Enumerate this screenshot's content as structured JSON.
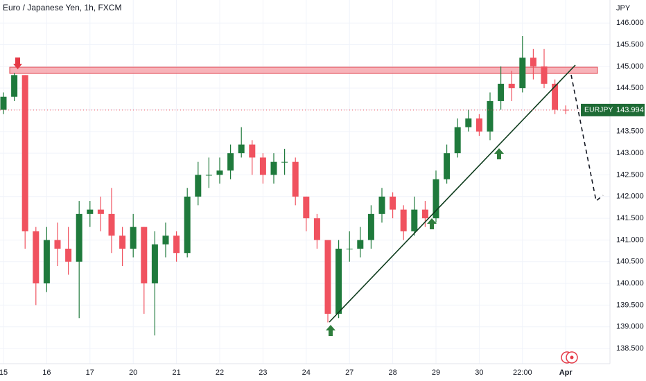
{
  "chart_data": {
    "type": "candlestick",
    "title": "Euro / Japanese Yen, 1h, FXCM",
    "currency": "JPY",
    "categories": [
      "15",
      null,
      null,
      null,
      "16",
      null,
      null,
      null,
      "17",
      null,
      null,
      null,
      "20",
      null,
      null,
      null,
      "21",
      null,
      null,
      null,
      "22",
      null,
      null,
      null,
      "23",
      null,
      null,
      null,
      "24",
      null,
      null,
      null,
      "27",
      null,
      null,
      null,
      "28",
      null,
      null,
      null,
      "29",
      null,
      null,
      null,
      "30",
      null,
      null,
      null,
      "22:00",
      null,
      null,
      null,
      "Apr"
    ],
    "open": [
      144.0,
      144.3,
      144.8,
      141.2,
      140.0,
      141.0,
      140.8,
      140.5,
      141.6,
      141.7,
      141.6,
      141.1,
      140.8,
      141.3,
      140.0,
      140.9,
      141.1,
      140.7,
      142.0,
      142.5,
      142.5,
      142.6,
      143.0,
      143.2,
      142.9,
      142.5,
      142.8,
      142.8,
      142.0,
      141.5,
      141.0,
      139.3,
      140.8,
      140.8,
      141.0,
      141.6,
      142.0,
      141.7,
      141.2,
      141.7,
      141.5,
      142.4,
      143.0,
      143.6,
      143.8,
      143.5,
      144.2,
      144.6,
      144.5,
      145.2,
      145.0,
      144.6,
      144.0
    ],
    "high": [
      144.4,
      144.85,
      144.8,
      141.3,
      141.3,
      141.4,
      141.3,
      141.9,
      141.9,
      142.0,
      142.2,
      141.3,
      141.6,
      141.3,
      141.2,
      141.4,
      141.2,
      142.2,
      142.8,
      142.9,
      142.9,
      143.2,
      143.6,
      143.3,
      143.0,
      143.0,
      143.1,
      142.9,
      142.0,
      141.6,
      141.0,
      141.0,
      141.2,
      141.3,
      141.8,
      142.2,
      142.1,
      141.8,
      142.0,
      141.9,
      142.6,
      143.2,
      143.8,
      144.0,
      143.9,
      144.4,
      145.0,
      144.9,
      145.7,
      145.4,
      145.4,
      144.7,
      144.1
    ],
    "low": [
      143.9,
      144.2,
      140.8,
      139.5,
      139.8,
      140.4,
      140.2,
      139.2,
      141.3,
      141.2,
      140.7,
      140.4,
      140.6,
      139.3,
      138.8,
      140.6,
      140.5,
      140.6,
      141.8,
      142.2,
      142.3,
      142.4,
      142.9,
      142.5,
      142.3,
      142.3,
      142.5,
      141.8,
      141.2,
      140.8,
      139.1,
      139.2,
      140.5,
      140.6,
      140.8,
      141.4,
      141.5,
      141.0,
      141.1,
      141.3,
      141.4,
      142.3,
      142.9,
      143.5,
      143.4,
      143.3,
      144.0,
      144.2,
      144.4,
      144.7,
      144.5,
      143.9,
      143.9
    ],
    "close": [
      144.3,
      144.8,
      141.2,
      140.0,
      141.0,
      140.8,
      140.5,
      141.6,
      141.7,
      141.6,
      141.1,
      140.8,
      141.3,
      140.0,
      140.9,
      141.1,
      140.7,
      142.0,
      142.5,
      142.5,
      142.6,
      143.0,
      143.2,
      142.9,
      142.5,
      142.8,
      142.8,
      142.0,
      141.5,
      141.0,
      139.3,
      140.8,
      140.8,
      141.0,
      141.6,
      142.0,
      141.7,
      141.2,
      141.7,
      141.5,
      142.4,
      143.0,
      143.6,
      143.8,
      143.5,
      144.2,
      144.6,
      144.5,
      145.2,
      145.0,
      144.6,
      144.0,
      143.99
    ],
    "up_color": "#1f7a3c",
    "down_color": "#f0525f",
    "ylim": [
      138.15,
      146.53
    ],
    "yticks": [
      {
        "value": 138.5,
        "label": "138.500"
      },
      {
        "value": 139,
        "label": "139.000"
      },
      {
        "value": 139.5,
        "label": "139.500"
      },
      {
        "value": 140,
        "label": "140.000"
      },
      {
        "value": 140.5,
        "label": "140.500"
      },
      {
        "value": 141,
        "label": "141.000"
      },
      {
        "value": 141.5,
        "label": "141.500"
      },
      {
        "value": 142,
        "label": "142.000"
      },
      {
        "value": 142.5,
        "label": "142.500"
      },
      {
        "value": 143,
        "label": "143.000"
      },
      {
        "value": 143.5,
        "label": "143.500"
      },
      {
        "value": 144,
        "label": "144.000"
      },
      {
        "value": 144.5,
        "label": "144.500"
      },
      {
        "value": 145,
        "label": "145.000"
      },
      {
        "value": 145.5,
        "label": "145.500"
      },
      {
        "value": 146,
        "label": "146.000"
      }
    ],
    "grid": true,
    "last_price": {
      "symbol": "EURJPY",
      "value": 143.994
    }
  }
}
